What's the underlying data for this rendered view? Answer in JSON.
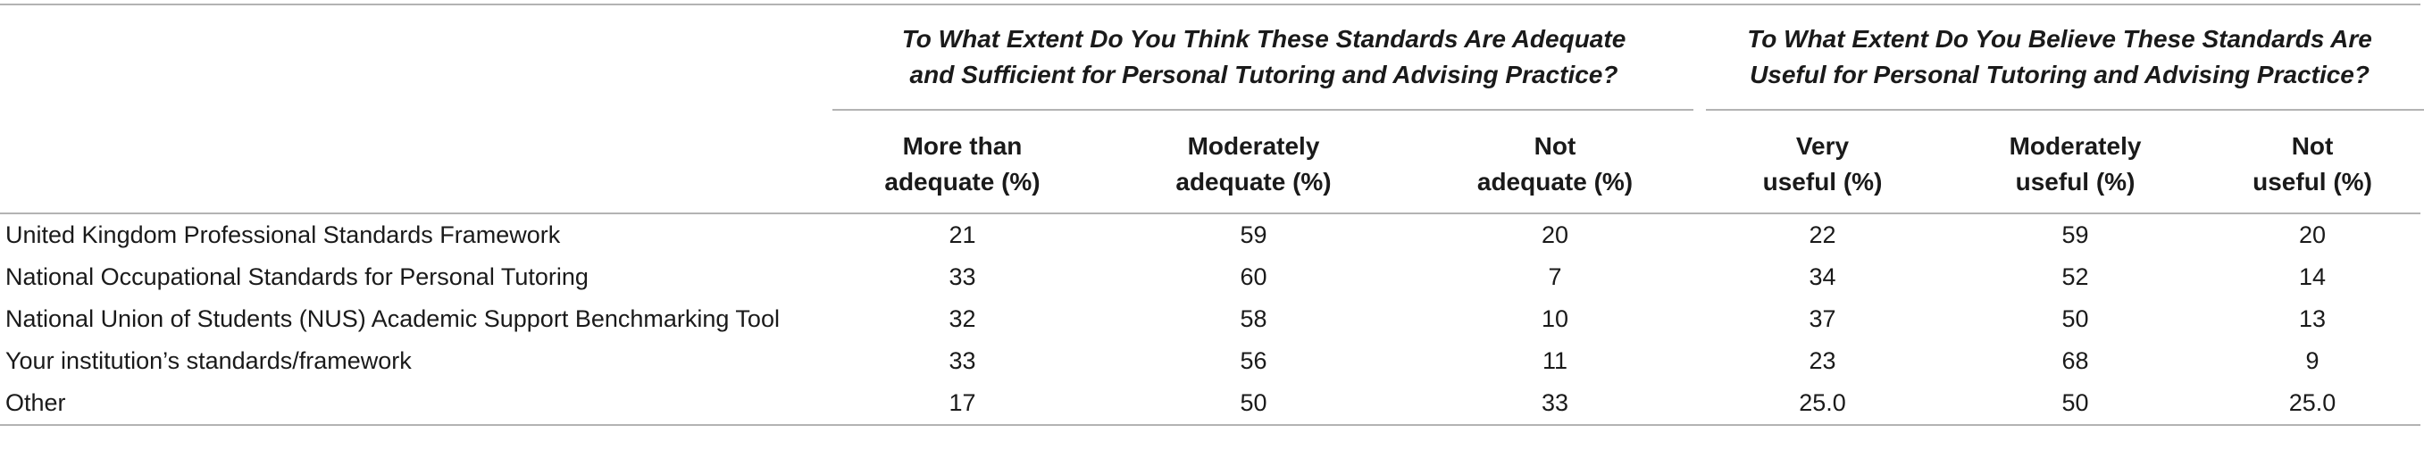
{
  "table": {
    "group_headers": [
      "To What Extent Do You Think These Standards Are Adequate\nand Sufficient for Personal Tutoring and Advising Practice?",
      "To What Extent Do You Believe These Standards Are\nUseful for Personal Tutoring and Advising Practice?"
    ],
    "column_headers": [
      "More than\nadequate (%)",
      "Moderately\nadequate (%)",
      "Not\nadequate (%)",
      "Very\nuseful (%)",
      "Moderately\nuseful (%)",
      "Not\nuseful (%)"
    ],
    "rows": [
      {
        "label": "United Kingdom Professional Standards Framework",
        "values": [
          "21",
          "59",
          "20",
          "22",
          "59",
          "20"
        ]
      },
      {
        "label": "National Occupational Standards for Personal Tutoring",
        "values": [
          "33",
          "60",
          "7",
          "34",
          "52",
          "14"
        ]
      },
      {
        "label": "National Union of Students (NUS) Academic Support Benchmarking Tool",
        "values": [
          "32",
          "58",
          "10",
          "37",
          "50",
          "13"
        ]
      },
      {
        "label": "Your institution’s standards/framework",
        "values": [
          "33",
          "56",
          "11",
          "23",
          "68",
          "9"
        ]
      },
      {
        "label": "Other",
        "values": [
          "17",
          "50",
          "33",
          "25.0",
          "50",
          "25.0"
        ]
      }
    ]
  }
}
